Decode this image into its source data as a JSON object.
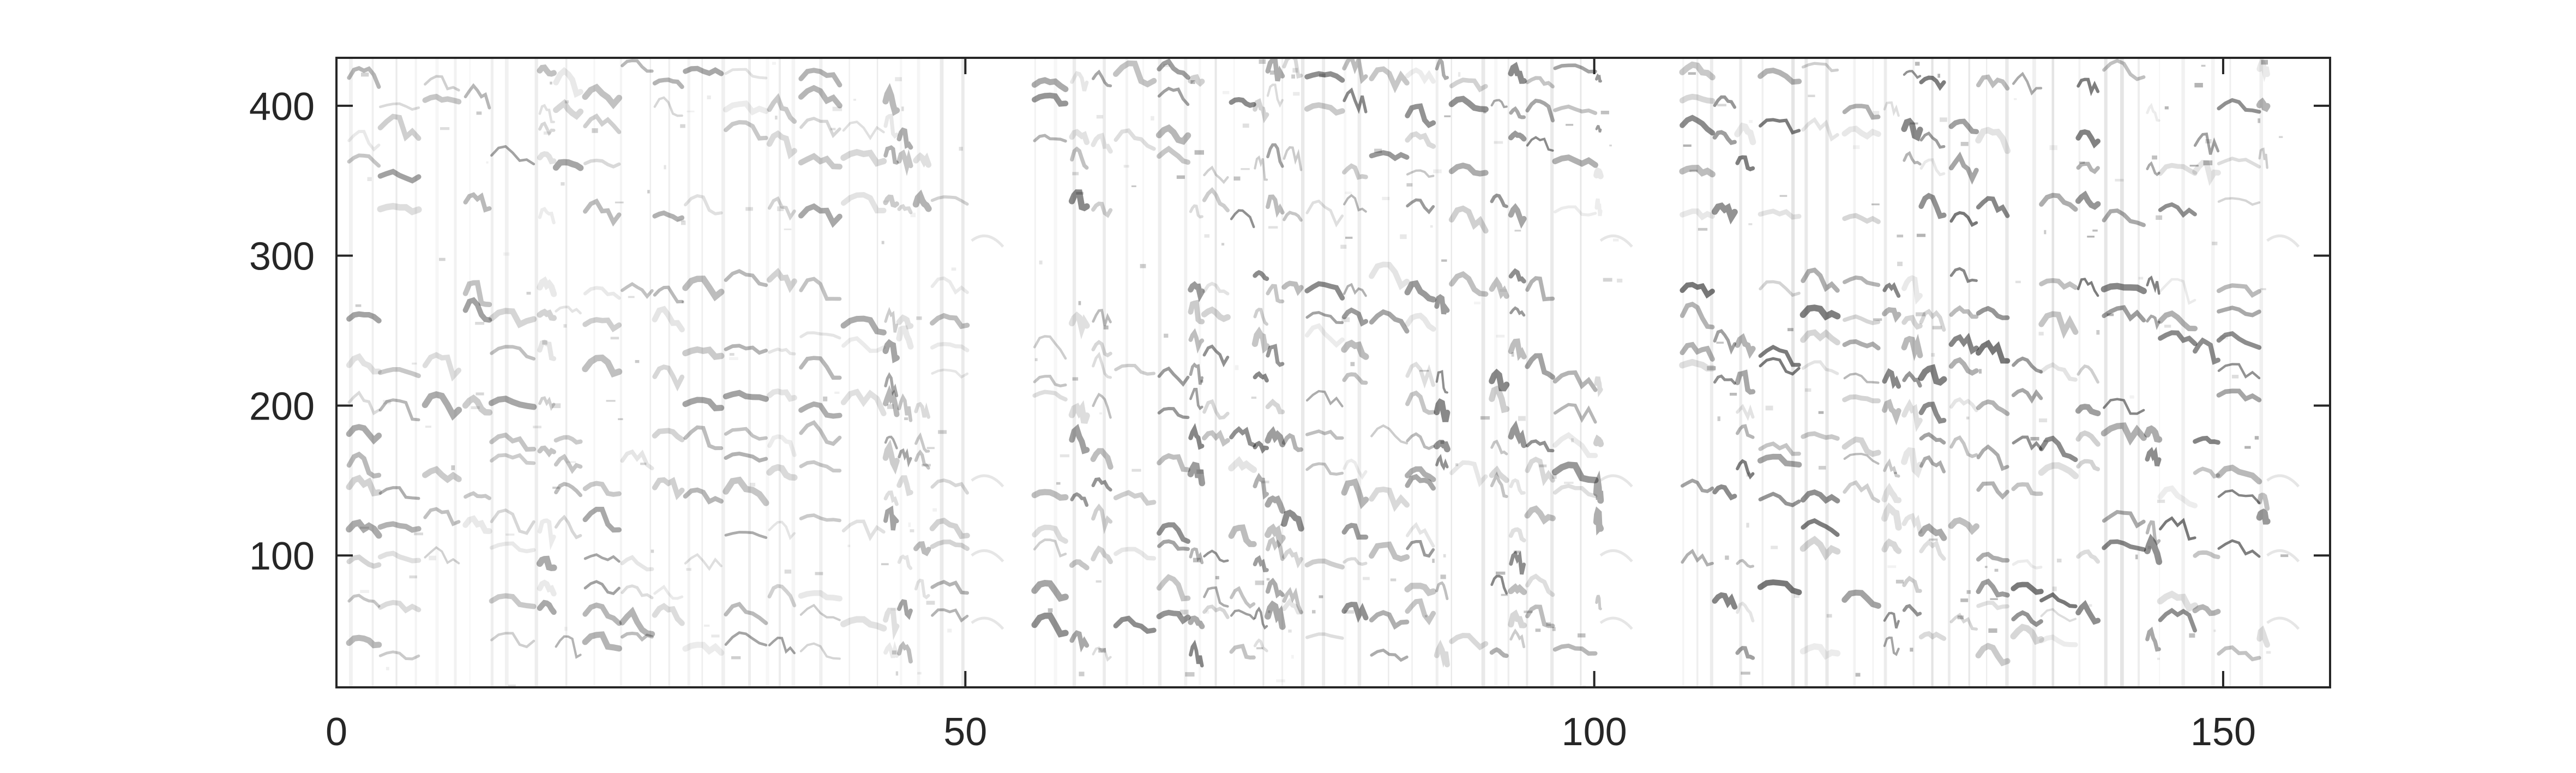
{
  "chart_data": {
    "type": "heatmap",
    "title": "",
    "xlabel": "",
    "ylabel": "",
    "xlim": [
      0,
      158.5
    ],
    "ylim": [
      12,
      432
    ],
    "x_ticks": [
      0,
      50,
      100,
      150
    ],
    "y_ticks": [
      100,
      200,
      300,
      400
    ],
    "x_tick_labels": [
      "0",
      "50",
      "100",
      "150"
    ],
    "y_tick_labels": [
      "100",
      "200",
      "300",
      "400"
    ],
    "colormap": "white-to-black (gray, reversed)",
    "grid": false,
    "legend": "none",
    "description_of_values": "spectrogram-like intensity; darker = higher. Dark horizontal contours near y≈40, 60, 100, 140, 160, 200, 240, 280, 330, 380, 400; near-blank regions around x≈50–55 and x≈100–107",
    "silent_gaps_x": [
      [
        50.5,
        55.5
      ],
      [
        100.5,
        107.0
      ],
      [
        153.5,
        158.5
      ]
    ],
    "active_segments": [
      {
        "x_start": 1.0,
        "x_end": 50.5,
        "intensity": 0.55
      },
      {
        "x_start": 55.5,
        "x_end": 100.5,
        "intensity": 0.75
      },
      {
        "x_start": 107.0,
        "x_end": 153.5,
        "intensity": 0.85
      }
    ],
    "harmonic_bands_y": [
      40,
      60,
      75,
      100,
      120,
      140,
      160,
      175,
      200,
      220,
      240,
      260,
      280,
      330,
      360,
      380,
      400,
      420
    ]
  },
  "colors": {
    "axis": "#262626",
    "background": "#ffffff",
    "mark_dark": "#1a1a1a"
  }
}
